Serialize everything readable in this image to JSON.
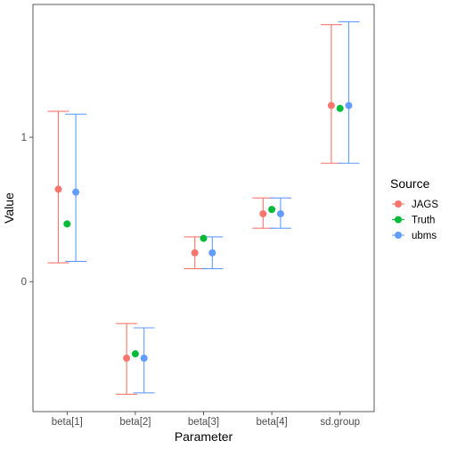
{
  "chart_data": {
    "type": "scatter",
    "xlabel": "Parameter",
    "ylabel": "Value",
    "categories": [
      "beta[1]",
      "beta[2]",
      "beta[3]",
      "beta[4]",
      "sd.group"
    ],
    "y_ticks": [
      0,
      1
    ],
    "ylim": [
      -0.9,
      1.92
    ],
    "grid": false,
    "legend": {
      "title": "Source",
      "position": "right"
    },
    "series": [
      {
        "name": "JAGS",
        "color": "#F8766D",
        "values": [
          0.64,
          -0.53,
          0.2,
          0.47,
          1.22
        ],
        "lower": [
          0.13,
          -0.78,
          0.09,
          0.37,
          0.82
        ],
        "upper": [
          1.18,
          -0.29,
          0.31,
          0.58,
          1.78
        ]
      },
      {
        "name": "Truth",
        "color": "#00BA38",
        "values": [
          0.4,
          -0.5,
          0.3,
          0.5,
          1.2
        ]
      },
      {
        "name": "ubms",
        "color": "#619CFF",
        "values": [
          0.62,
          -0.53,
          0.2,
          0.47,
          1.22
        ],
        "lower": [
          0.14,
          -0.77,
          0.09,
          0.37,
          0.82
        ],
        "upper": [
          1.16,
          -0.32,
          0.31,
          0.58,
          1.8
        ]
      }
    ]
  }
}
